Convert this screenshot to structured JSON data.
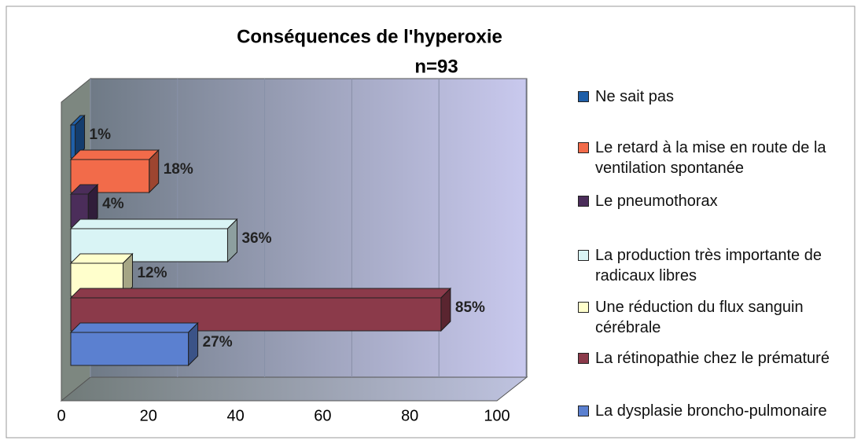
{
  "chart_data": {
    "type": "bar3d",
    "orientation": "horizontal",
    "title": "Conséquences de l'hyperoxie",
    "subtitle": "n=93",
    "categories": [
      "Ne sait pas",
      "Le retard à la mise en route de la ventilation spontanée",
      "Le pneumothorax",
      "La production très importante de radicaux libres",
      "Une réduction du flux sanguin cérébrale",
      "La rétinopathie chez le prématuré",
      "La dysplasie broncho-pulmonaire"
    ],
    "values": [
      1,
      18,
      4,
      36,
      12,
      85,
      27
    ],
    "value_labels": [
      "1%",
      "18%",
      "4%",
      "36%",
      "12%",
      "85%",
      "27%"
    ],
    "colors": [
      "#1f5fa8",
      "#f26b4a",
      "#4b2d5a",
      "#d9f4f5",
      "#ffffcc",
      "#8b3a4a",
      "#5b80d0"
    ],
    "xlim": [
      0,
      100
    ],
    "xticks": [
      0,
      20,
      40,
      60,
      80,
      100
    ],
    "grid": true,
    "legend": "right"
  }
}
